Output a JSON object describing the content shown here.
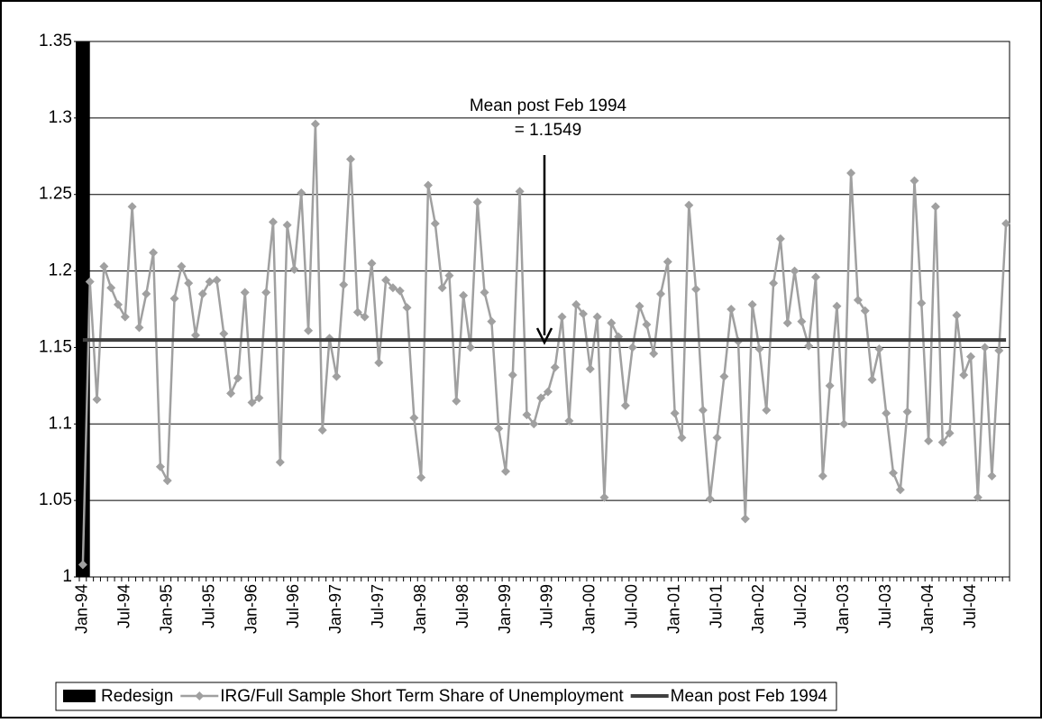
{
  "chart_data": {
    "type": "line",
    "categories": [
      "Jan-94",
      null,
      null,
      null,
      null,
      null,
      "Jul-94",
      null,
      null,
      null,
      null,
      null,
      "Jan-95",
      null,
      null,
      null,
      null,
      null,
      "Jul-95",
      null,
      null,
      null,
      null,
      null,
      "Jan-96",
      null,
      null,
      null,
      null,
      null,
      "Jul-96",
      null,
      null,
      null,
      null,
      null,
      "Jan-97",
      null,
      null,
      null,
      null,
      null,
      "Jul-97",
      null,
      null,
      null,
      null,
      null,
      "Jan-98",
      null,
      null,
      null,
      null,
      null,
      "Jul-98",
      null,
      null,
      null,
      null,
      null,
      "Jan-99",
      null,
      null,
      null,
      null,
      null,
      "Jul-99",
      null,
      null,
      null,
      null,
      null,
      "Jan-00",
      null,
      null,
      null,
      null,
      null,
      "Jul-00",
      null,
      null,
      null,
      null,
      null,
      "Jan-01",
      null,
      null,
      null,
      null,
      null,
      "Jul-01",
      null,
      null,
      null,
      null,
      null,
      "Jan-02",
      null,
      null,
      null,
      null,
      null,
      "Jul-02",
      null,
      null,
      null,
      null,
      null,
      "Jan-03",
      null,
      null,
      null,
      null,
      null,
      "Jul-03",
      null,
      null,
      null,
      null,
      null,
      "Jan-04",
      null,
      null,
      null,
      null,
      null,
      "Jul-04",
      null,
      null,
      null,
      null,
      null
    ],
    "series": [
      {
        "name": "Redesign",
        "type": "bar",
        "color": "#000000",
        "values": [
          1.35,
          null,
          null,
          null,
          null,
          null,
          null,
          null,
          null,
          null,
          null,
          null,
          null,
          null,
          null,
          null,
          null,
          null,
          null,
          null,
          null,
          null,
          null,
          null,
          null,
          null,
          null,
          null,
          null,
          null,
          null,
          null,
          null,
          null,
          null,
          null,
          null,
          null,
          null,
          null,
          null,
          null,
          null,
          null,
          null,
          null,
          null,
          null,
          null,
          null,
          null,
          null,
          null,
          null,
          null,
          null,
          null,
          null,
          null,
          null,
          null,
          null,
          null,
          null,
          null,
          null,
          null,
          null,
          null,
          null,
          null,
          null,
          null,
          null,
          null,
          null,
          null,
          null,
          null,
          null,
          null,
          null,
          null,
          null,
          null,
          null,
          null,
          null,
          null,
          null,
          null,
          null,
          null,
          null,
          null,
          null,
          null,
          null,
          null,
          null,
          null,
          null,
          null,
          null,
          null,
          null,
          null,
          null,
          null,
          null,
          null,
          null,
          null,
          null,
          null,
          null,
          null,
          null,
          null,
          null,
          null,
          null,
          null,
          null,
          null,
          null,
          null,
          null,
          null,
          null,
          null,
          null
        ]
      },
      {
        "name": "IRG/Full Sample Short Term Share of Unemployment",
        "type": "line",
        "color": "#a0a0a0",
        "values": [
          1.008,
          1.193,
          1.116,
          1.203,
          1.189,
          1.178,
          1.17,
          1.242,
          1.163,
          1.185,
          1.212,
          1.072,
          1.063,
          1.182,
          1.203,
          1.192,
          1.158,
          1.185,
          1.193,
          1.194,
          1.159,
          1.12,
          1.13,
          1.186,
          1.114,
          1.117,
          1.186,
          1.232,
          1.075,
          1.23,
          1.201,
          1.251,
          1.161,
          1.296,
          1.096,
          1.156,
          1.131,
          1.191,
          1.273,
          1.173,
          1.17,
          1.205,
          1.14,
          1.194,
          1.189,
          1.187,
          1.176,
          1.104,
          1.065,
          1.256,
          1.231,
          1.189,
          1.197,
          1.115,
          1.184,
          1.15,
          1.245,
          1.186,
          1.167,
          1.097,
          1.069,
          1.132,
          1.252,
          1.106,
          1.1,
          1.117,
          1.121,
          1.137,
          1.17,
          1.102,
          1.178,
          1.172,
          1.136,
          1.17,
          1.052,
          1.166,
          1.157,
          1.112,
          1.15,
          1.177,
          1.165,
          1.146,
          1.185,
          1.206,
          1.107,
          1.091,
          1.243,
          1.188,
          1.109,
          1.051,
          1.091,
          1.131,
          1.175,
          1.154,
          1.038,
          1.178,
          1.149,
          1.109,
          1.192,
          1.221,
          1.166,
          1.2,
          1.167,
          1.151,
          1.196,
          1.066,
          1.125,
          1.177,
          1.1,
          1.264,
          1.181,
          1.174,
          1.129,
          1.149,
          1.107,
          1.068,
          1.057,
          1.108,
          1.259,
          1.179,
          1.089,
          1.242,
          1.088,
          1.094,
          1.171,
          1.132,
          1.144,
          1.052,
          1.15,
          1.066,
          1.148,
          1.231
        ]
      },
      {
        "name": "Mean post Feb 1994",
        "type": "hline",
        "color": "#404040",
        "value": 1.1549
      }
    ],
    "annotation": [
      "Mean post Feb 1994",
      "= 1.1549"
    ],
    "ylim": [
      1,
      1.35
    ],
    "yticks": [
      1,
      1.05,
      1.1,
      1.15,
      1.2,
      1.25,
      1.3,
      1.35
    ],
    "grid": true,
    "legend": "bottom"
  }
}
